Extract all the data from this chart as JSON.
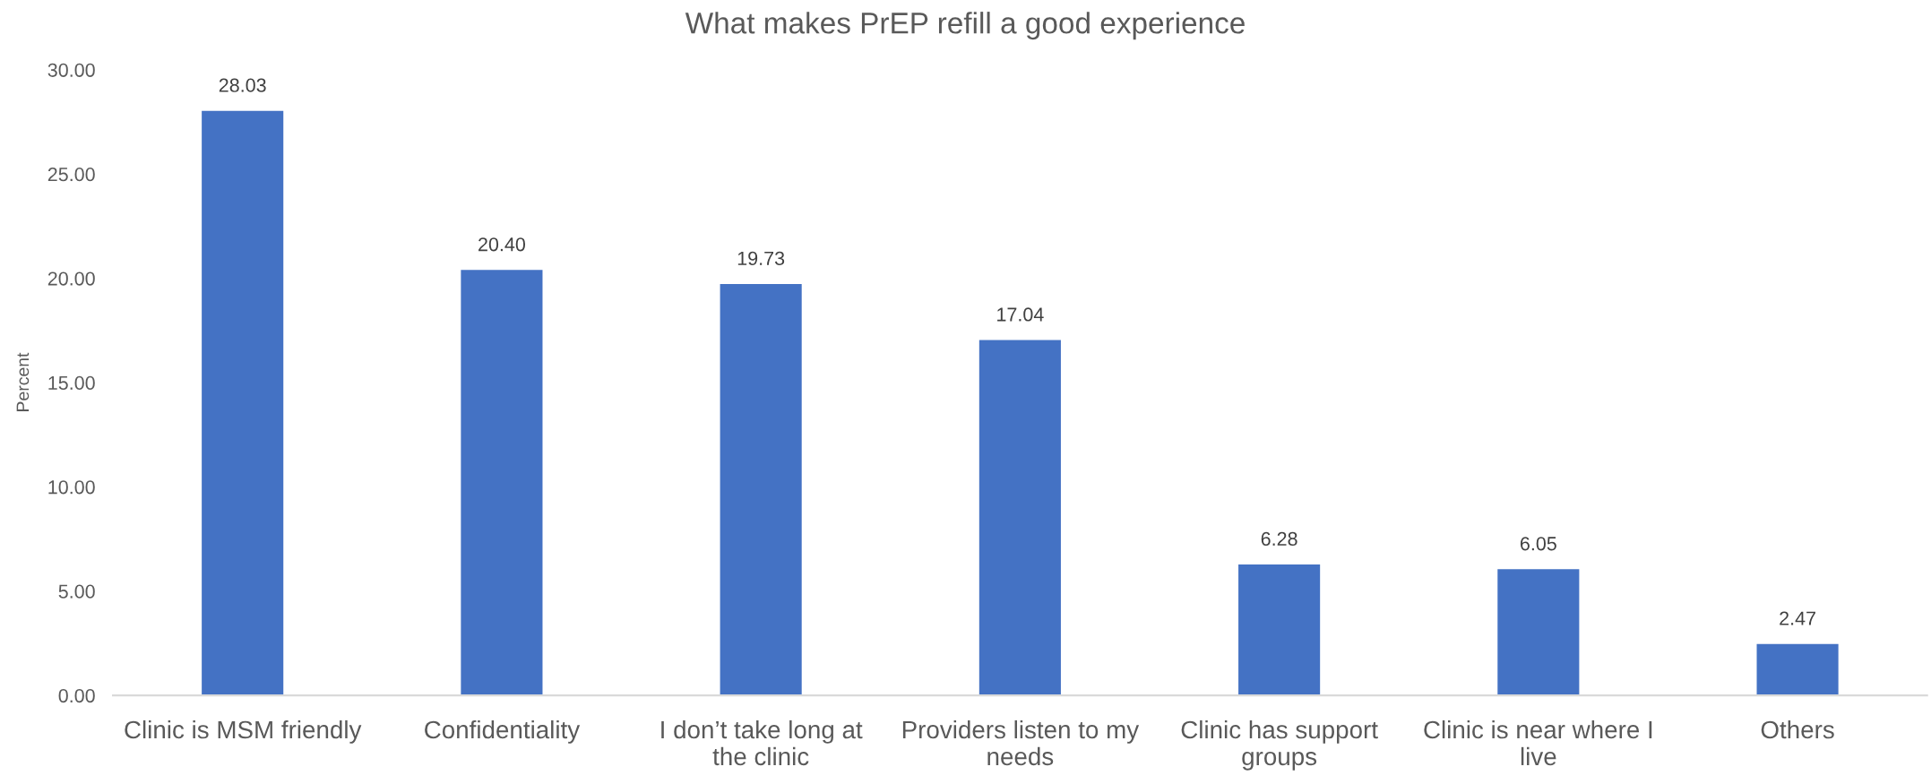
{
  "chart_data": {
    "type": "bar",
    "title": "What makes PrEP refill a good experience",
    "ylabel": "Percent",
    "categories": [
      "Clinic is MSM friendly",
      "Confidentiality",
      "I don’t take long at the clinic",
      "Providers listen to my needs",
      "Clinic has support groups",
      "Clinic is near where I live",
      "Others"
    ],
    "values": [
      28.03,
      20.4,
      19.73,
      17.04,
      6.28,
      6.05,
      2.47
    ],
    "value_labels": [
      "28.03",
      "20.40",
      "19.73",
      "17.04",
      "6.28",
      "6.05",
      "2.47"
    ],
    "color": "#4472c4",
    "ylim": [
      0,
      30
    ],
    "yticks": [
      {
        "value": 0,
        "label": "0.00"
      },
      {
        "value": 5,
        "label": "5.00"
      },
      {
        "value": 10,
        "label": "10.00"
      },
      {
        "value": 15,
        "label": "15.00"
      },
      {
        "value": 20,
        "label": "20.00"
      },
      {
        "value": 25,
        "label": "25.00"
      },
      {
        "value": 30,
        "label": "30.00"
      }
    ]
  }
}
